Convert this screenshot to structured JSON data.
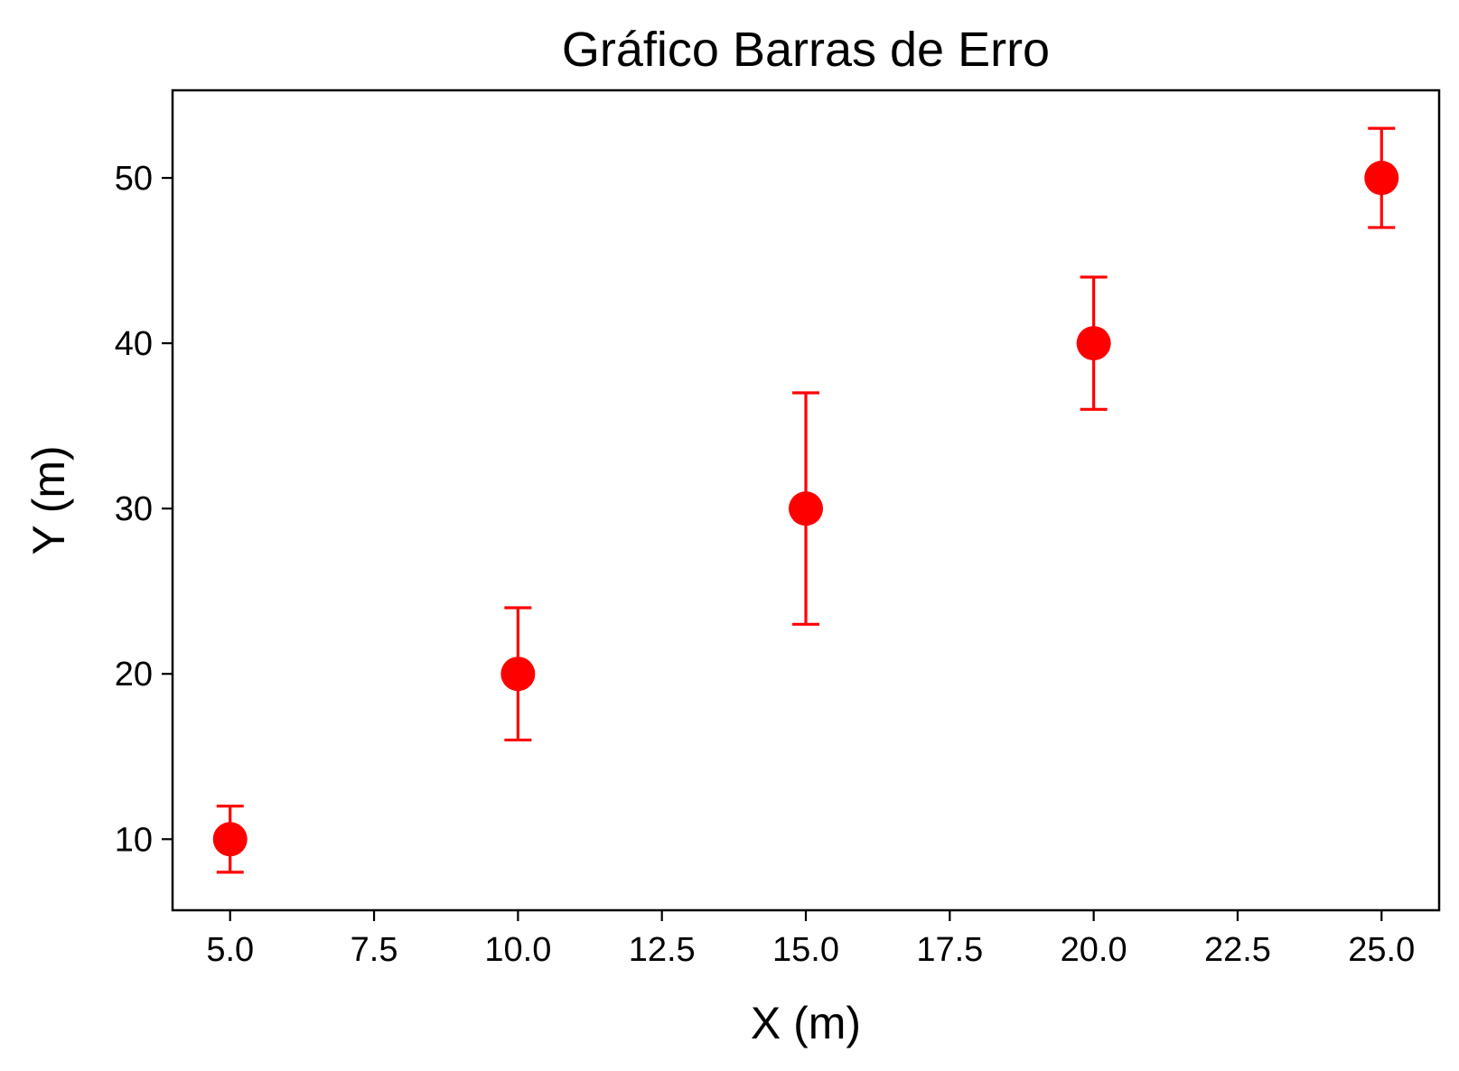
{
  "chart_data": {
    "type": "scatter",
    "title": "Gráfico Barras de Erro",
    "xlabel": "X (m)",
    "ylabel": "Y (m)",
    "xlim": [
      4.0,
      26.0
    ],
    "ylim": [
      5.7,
      55.3
    ],
    "xticks": [
      "5.0",
      "7.5",
      "10.0",
      "12.5",
      "15.0",
      "17.5",
      "20.0",
      "22.5",
      "25.0"
    ],
    "yticks": [
      "10",
      "20",
      "30",
      "40",
      "50"
    ],
    "grid": false,
    "color": "#ff0000",
    "series": [
      {
        "points": [
          {
            "x": 5,
            "y": 10,
            "yerr_low": 8,
            "yerr_high": 12
          },
          {
            "x": 10,
            "y": 20,
            "yerr_low": 16,
            "yerr_high": 24
          },
          {
            "x": 15,
            "y": 30,
            "yerr_low": 23,
            "yerr_high": 37
          },
          {
            "x": 20,
            "y": 40,
            "yerr_low": 36,
            "yerr_high": 44
          },
          {
            "x": 25,
            "y": 50,
            "yerr_low": 47,
            "yerr_high": 53
          }
        ]
      }
    ]
  }
}
